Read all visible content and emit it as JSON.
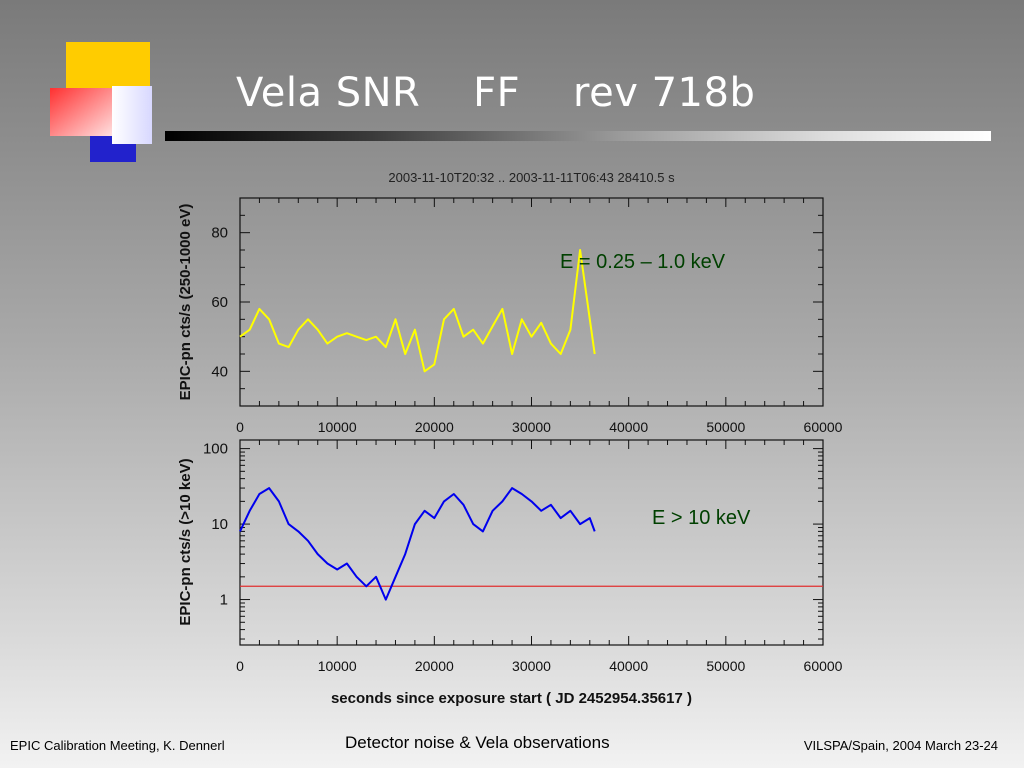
{
  "slide": {
    "title": "Vela SNR    FF    rev 718b",
    "footer_left": "EPIC Calibration Meeting, K. Dennerl",
    "footer_center": "Detector noise & Vela observations",
    "footer_right": "VILSPA/Spain, 2004 March 23-24"
  },
  "colors": {
    "logo_yellow": "#ffcc00",
    "logo_red": "#ff3030",
    "logo_blue": "#2222cc",
    "soft_series": "#ffff00",
    "hard_series": "#0000ee",
    "threshold_line": "#e03030",
    "annotation_soft": "#004000",
    "annotation_hard": "#004000"
  },
  "chart_data": [
    {
      "type": "line",
      "header": "2003-11-10T20:32 .. 2003-11-11T06:43     28410.5 s",
      "ylabel": "EPIC-pn cts/s  (250-1000 eV)",
      "xlim": [
        0,
        60000
      ],
      "ylim": [
        30,
        90
      ],
      "x_ticks": [
        0,
        10000,
        20000,
        30000,
        40000,
        50000,
        60000
      ],
      "y_ticks": [
        40,
        60,
        80
      ],
      "annotation": "E = 0.25 – 1.0 keV",
      "series": [
        {
          "x": [
            0,
            1000,
            2000,
            3000,
            4000,
            5000,
            6000,
            7000,
            8000,
            9000,
            10000,
            11000,
            12000,
            13000,
            14000,
            15000,
            16000,
            17000,
            18000,
            19000,
            20000,
            21000,
            22000,
            23000,
            24000,
            25000,
            26000,
            27000,
            28000,
            29000,
            30000,
            31000,
            32000,
            33000,
            34000,
            35000,
            36000,
            36500
          ],
          "y": [
            50,
            52,
            58,
            55,
            48,
            47,
            52,
            55,
            52,
            48,
            50,
            51,
            50,
            49,
            50,
            47,
            55,
            45,
            52,
            40,
            42,
            55,
            58,
            50,
            52,
            48,
            53,
            58,
            45,
            55,
            50,
            54,
            48,
            45,
            52,
            75,
            55,
            45
          ]
        }
      ]
    },
    {
      "type": "line",
      "ylabel": "EPIC-pn cts/s  (>10 keV)",
      "xlabel": "seconds since exposure start  ( JD 2452954.35617 )",
      "xlim": [
        0,
        60000
      ],
      "ylim": [
        0.25,
        130
      ],
      "yscale": "log",
      "x_ticks": [
        0,
        10000,
        20000,
        30000,
        40000,
        50000,
        60000
      ],
      "y_ticks": [
        1,
        10,
        100
      ],
      "annotation": "E > 10 keV",
      "threshold": 1.5,
      "series": [
        {
          "x": [
            0,
            1000,
            2000,
            3000,
            4000,
            5000,
            6000,
            7000,
            8000,
            9000,
            10000,
            11000,
            12000,
            13000,
            14000,
            15000,
            16000,
            17000,
            18000,
            19000,
            20000,
            21000,
            22000,
            23000,
            24000,
            25000,
            26000,
            27000,
            28000,
            29000,
            30000,
            31000,
            32000,
            33000,
            34000,
            35000,
            36000,
            36500
          ],
          "y": [
            8,
            15,
            25,
            30,
            20,
            10,
            8,
            6,
            4,
            3,
            2.5,
            3,
            2,
            1.5,
            2,
            1,
            2,
            4,
            10,
            15,
            12,
            20,
            25,
            18,
            10,
            8,
            15,
            20,
            30,
            25,
            20,
            15,
            18,
            12,
            15,
            10,
            12,
            8
          ]
        }
      ]
    }
  ]
}
